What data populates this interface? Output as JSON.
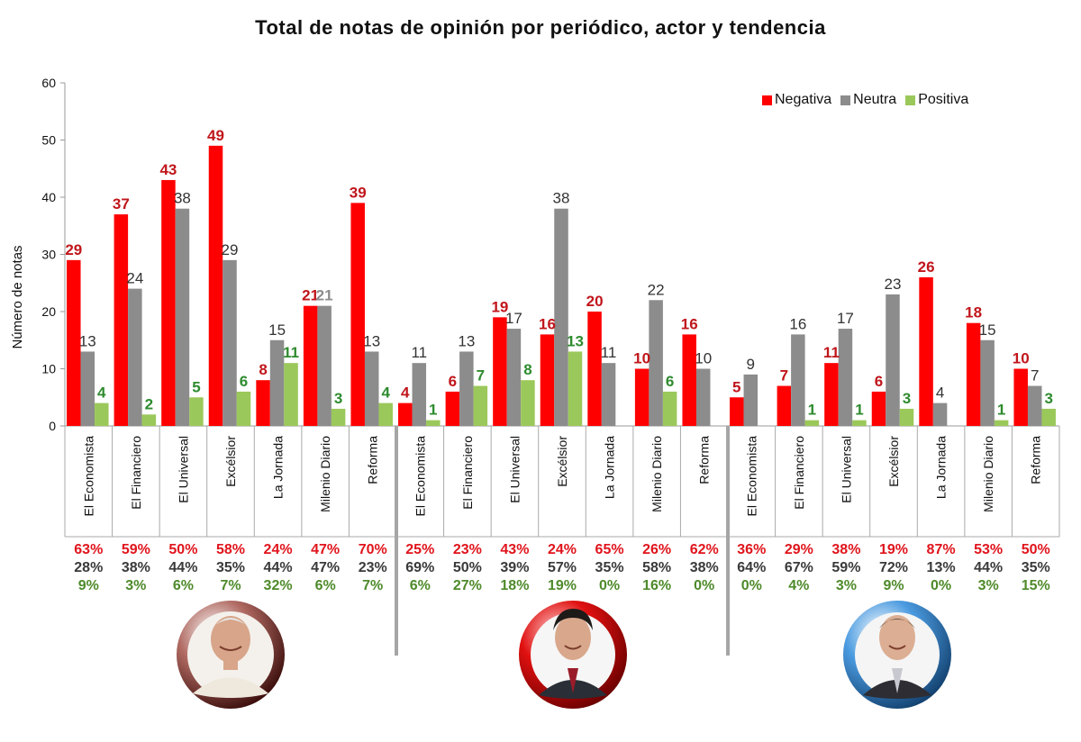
{
  "title": "Total de notas de opinión por periódico, actor y tendencia",
  "colors": {
    "negativa": "#FF0000",
    "neutra": "#8C8C8C",
    "positiva": "#9BC85A",
    "label_neg": "#C0161B",
    "label_neu": "#333333",
    "label_pos": "#2E8B2E",
    "pct_neg": "#E0141C",
    "pct_neu": "#3A3A3A",
    "pct_pos": "#4E8A2A"
  },
  "chart_data": {
    "type": "bar",
    "title": "Total de notas de opinión por periódico, actor y tendencia",
    "ylabel": "Número de notas",
    "ylim": [
      0,
      60
    ],
    "yticks": [
      0,
      10,
      20,
      30,
      40,
      50,
      60
    ],
    "legend": {
      "placement": "top-right",
      "entries": [
        "Negativa",
        "Neutra",
        "Positiva"
      ]
    },
    "categories": [
      "El Economista",
      "El Financiero",
      "El Universal",
      "Excélsior",
      "La Jornada",
      "Milenio Diario",
      "Reforma",
      "El Economista",
      "El Financiero",
      "El Universal",
      "Excélsior",
      "La Jornada",
      "Milenio Diario",
      "Reforma",
      "El Economista",
      "El Financiero",
      "El Universal",
      "Excélsior",
      "La Jornada",
      "Milenio Diario",
      "Reforma"
    ],
    "series": [
      {
        "name": "Negativa",
        "values": [
          29,
          37,
          43,
          49,
          8,
          21,
          39,
          4,
          6,
          19,
          16,
          20,
          10,
          16,
          5,
          7,
          11,
          6,
          26,
          18,
          10
        ]
      },
      {
        "name": "Neutra",
        "values": [
          13,
          24,
          38,
          29,
          15,
          21,
          13,
          11,
          13,
          17,
          38,
          11,
          22,
          10,
          9,
          16,
          17,
          23,
          4,
          15,
          7
        ]
      },
      {
        "name": "Positiva",
        "values": [
          4,
          2,
          5,
          6,
          11,
          3,
          4,
          1,
          7,
          8,
          13,
          0,
          6,
          0,
          0,
          1,
          1,
          3,
          0,
          1,
          3
        ]
      }
    ],
    "percentages": {
      "negativa": [
        "63%",
        "59%",
        "50%",
        "58%",
        "24%",
        "47%",
        "70%",
        "25%",
        "23%",
        "43%",
        "24%",
        "65%",
        "26%",
        "62%",
        "36%",
        "29%",
        "38%",
        "19%",
        "87%",
        "53%",
        "50%"
      ],
      "neutra": [
        "28%",
        "38%",
        "44%",
        "35%",
        "44%",
        "47%",
        "23%",
        "69%",
        "50%",
        "39%",
        "57%",
        "35%",
        "58%",
        "38%",
        "64%",
        "67%",
        "59%",
        "72%",
        "13%",
        "44%",
        "35%"
      ],
      "positiva": [
        "9%",
        "3%",
        "6%",
        "7%",
        "32%",
        "6%",
        "7%",
        "6%",
        "27%",
        "18%",
        "19%",
        "0%",
        "16%",
        "0%",
        "0%",
        "4%",
        "3%",
        "9%",
        "0%",
        "3%",
        "15%"
      ]
    },
    "grid": false
  }
}
